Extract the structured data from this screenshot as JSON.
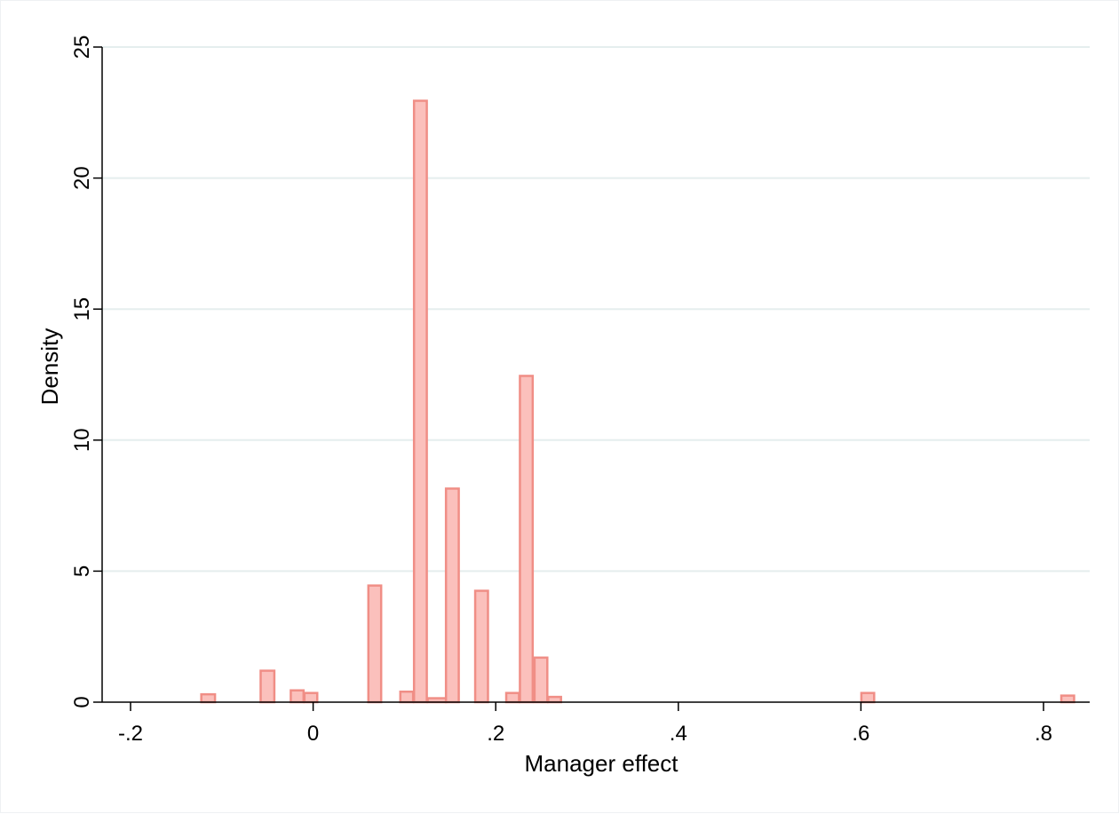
{
  "chart_data": {
    "type": "bar",
    "subtype": "histogram",
    "xlabel": "Manager effect",
    "ylabel": "Density",
    "xlim": [
      -0.2,
      0.85
    ],
    "ylim": [
      0,
      25
    ],
    "x_ticks": [
      {
        "value": -0.2,
        "label": "-.2"
      },
      {
        "value": 0,
        "label": "0"
      },
      {
        "value": 0.2,
        "label": ".2"
      },
      {
        "value": 0.4,
        "label": ".4"
      },
      {
        "value": 0.6,
        "label": ".6"
      },
      {
        "value": 0.8,
        "label": ".8"
      }
    ],
    "y_ticks": [
      {
        "value": 0,
        "label": "0"
      },
      {
        "value": 5,
        "label": "5"
      },
      {
        "value": 10,
        "label": "10"
      },
      {
        "value": 15,
        "label": "15"
      },
      {
        "value": 20,
        "label": "20"
      },
      {
        "value": 25,
        "label": "25"
      }
    ],
    "grid": "horizontal",
    "bar_fill": "#fbc0bc",
    "bar_edge": "#f08e86",
    "bins": [
      {
        "x0": -0.1225,
        "x1": -0.1075,
        "y": 0.3
      },
      {
        "x0": -0.0575,
        "x1": -0.0425,
        "y": 1.2
      },
      {
        "x0": -0.0245,
        "x1": -0.0105,
        "y": 0.45
      },
      {
        "x0": -0.0095,
        "x1": 0.0045,
        "y": 0.35
      },
      {
        "x0": 0.0605,
        "x1": 0.0745,
        "y": 4.45
      },
      {
        "x0": 0.0955,
        "x1": 0.1095,
        "y": 0.4
      },
      {
        "x0": 0.1105,
        "x1": 0.1245,
        "y": 22.95
      },
      {
        "x0": 0.1255,
        "x1": 0.1455,
        "y": 0.15
      },
      {
        "x0": 0.1455,
        "x1": 0.1595,
        "y": 8.15
      },
      {
        "x0": 0.1775,
        "x1": 0.1915,
        "y": 4.25
      },
      {
        "x0": 0.2115,
        "x1": 0.2255,
        "y": 0.35
      },
      {
        "x0": 0.2265,
        "x1": 0.2405,
        "y": 12.45
      },
      {
        "x0": 0.2425,
        "x1": 0.2565,
        "y": 1.7
      },
      {
        "x0": 0.2575,
        "x1": 0.2715,
        "y": 0.2
      },
      {
        "x0": 0.6005,
        "x1": 0.6145,
        "y": 0.35
      },
      {
        "x0": 0.8195,
        "x1": 0.8335,
        "y": 0.25
      }
    ]
  }
}
